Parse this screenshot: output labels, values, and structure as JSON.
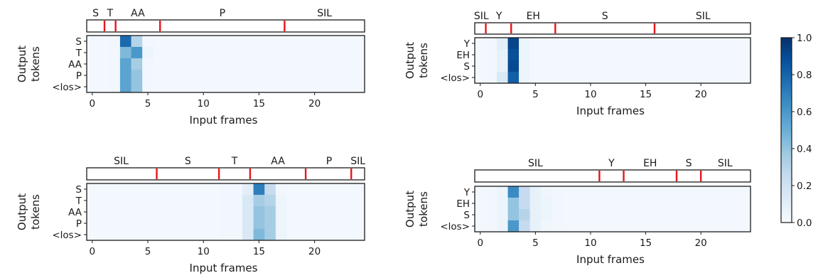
{
  "chart_data": {
    "type": "heatmap",
    "colorbar": {
      "ticks": [
        "0.0",
        "0.2",
        "0.4",
        "0.6",
        "0.8",
        "1.0"
      ],
      "range": [
        0,
        1
      ],
      "colormap": "Blues"
    },
    "panels": [
      {
        "id": "top-left",
        "segments": {
          "labels": [
            "S",
            "T",
            "AA",
            "P",
            "SIL"
          ],
          "boundaries": [
            1.1,
            2.1,
            6.1,
            17.3
          ]
        },
        "ylabel": [
          "Output",
          "tokens"
        ],
        "yticklabels": [
          "S",
          "T",
          "AA",
          "P",
          "<los>"
        ],
        "xlabel": "Input frames",
        "xticks": [
          0,
          5,
          10,
          15,
          20
        ],
        "xlim": [
          -0.5,
          24.5
        ],
        "active_cols": [
          2,
          3,
          4
        ],
        "matrix": [
          [
            0.02,
            0.02,
            0.03,
            0.78,
            0.3,
            0.03,
            0.02
          ],
          [
            0.02,
            0.02,
            0.03,
            0.45,
            0.6,
            0.05,
            0.02
          ],
          [
            0.02,
            0.02,
            0.03,
            0.55,
            0.35,
            0.03,
            0.02
          ],
          [
            0.02,
            0.02,
            0.03,
            0.55,
            0.4,
            0.03,
            0.02
          ],
          [
            0.02,
            0.02,
            0.03,
            0.55,
            0.4,
            0.03,
            0.02
          ]
        ]
      },
      {
        "id": "top-right",
        "segments": {
          "labels": [
            "SIL",
            "Y",
            "EH",
            "S",
            "SIL"
          ],
          "boundaries": [
            0.5,
            2.8,
            6.8,
            15.8
          ]
        },
        "ylabel": [
          "Output",
          "tokens"
        ],
        "yticklabels": [
          "Y",
          "EH",
          "S",
          "<los>"
        ],
        "xlabel": "Input frames",
        "xticks": [
          0,
          5,
          10,
          15,
          20
        ],
        "xlim": [
          -0.5,
          24.5
        ],
        "matrix": [
          [
            0.02,
            0.03,
            0.1,
            0.92,
            0.05,
            0.02,
            0.02
          ],
          [
            0.02,
            0.03,
            0.08,
            0.88,
            0.05,
            0.02,
            0.02
          ],
          [
            0.02,
            0.03,
            0.08,
            0.9,
            0.05,
            0.02,
            0.02
          ],
          [
            0.02,
            0.03,
            0.15,
            0.82,
            0.05,
            0.02,
            0.02
          ]
        ]
      },
      {
        "id": "bottom-left",
        "segments": {
          "labels": [
            "SIL",
            "S",
            "T",
            "AA",
            "P",
            "SIL"
          ],
          "boundaries": [
            5.8,
            11.4,
            14.2,
            19.2,
            23.3
          ]
        },
        "ylabel": [
          "Output",
          "tokens"
        ],
        "yticklabels": [
          "S",
          "T",
          "AA",
          "P",
          "<los>"
        ],
        "xlabel": "Input frames",
        "xticks": [
          0,
          5,
          10,
          15,
          20
        ],
        "xlim": [
          -0.5,
          24.5
        ],
        "matrix": [
          [
            0.03,
            0.03,
            0.1,
            0.7,
            0.25,
            0.03
          ],
          [
            0.03,
            0.03,
            0.15,
            0.35,
            0.3,
            0.05
          ],
          [
            0.03,
            0.03,
            0.15,
            0.4,
            0.35,
            0.05
          ],
          [
            0.03,
            0.03,
            0.15,
            0.4,
            0.35,
            0.05
          ],
          [
            0.03,
            0.03,
            0.15,
            0.45,
            0.35,
            0.05
          ]
        ]
      },
      {
        "id": "bottom-right",
        "segments": {
          "labels": [
            "SIL",
            "Y",
            "EH",
            "S",
            "SIL"
          ],
          "boundaries": [
            10.8,
            13.0,
            17.8,
            20.0
          ]
        },
        "ylabel": [
          "Output",
          "tokens"
        ],
        "yticklabels": [
          "Y",
          "EH",
          "S",
          "<los>"
        ],
        "xlabel": "Input frames",
        "xticks": [
          0,
          5,
          10,
          15,
          20
        ],
        "xlim": [
          -0.5,
          24.5
        ],
        "matrix": [
          [
            0.02,
            0.03,
            0.05,
            0.65,
            0.25,
            0.08,
            0.04,
            0.03,
            0.02
          ],
          [
            0.02,
            0.03,
            0.05,
            0.4,
            0.25,
            0.08,
            0.05,
            0.03,
            0.02
          ],
          [
            0.02,
            0.03,
            0.05,
            0.4,
            0.3,
            0.08,
            0.05,
            0.03,
            0.02
          ],
          [
            0.02,
            0.03,
            0.05,
            0.6,
            0.25,
            0.08,
            0.04,
            0.03,
            0.02
          ]
        ]
      }
    ]
  }
}
